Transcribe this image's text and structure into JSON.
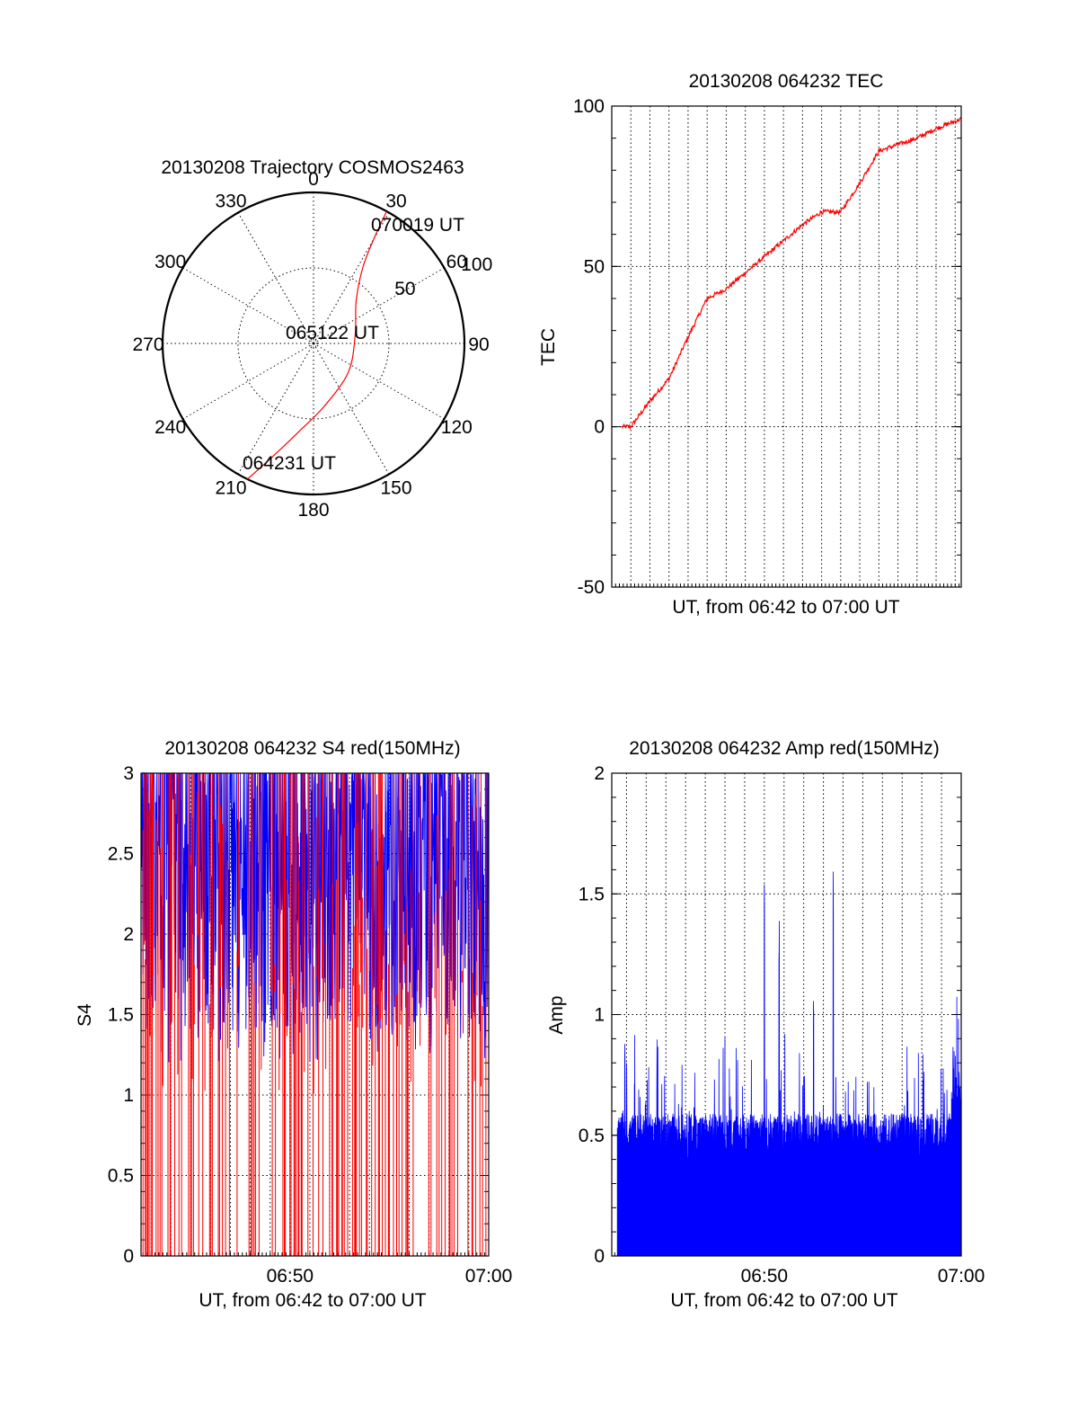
{
  "chart_data": [
    {
      "type": "polar",
      "title": "20130208 Trajectory COSMOS2463",
      "angle_labels": [
        "0",
        "30",
        "60",
        "90",
        "120",
        "150",
        "180",
        "210",
        "240",
        "270",
        "300",
        "330"
      ],
      "angles_deg": [
        0,
        30,
        60,
        90,
        120,
        150,
        180,
        210,
        240,
        270,
        300,
        330
      ],
      "radial_labels": [
        "50",
        "100"
      ],
      "radial_values": [
        50,
        100
      ],
      "rmax": 100,
      "annotations": [
        "070019 UT",
        "065122 UT",
        "064231 UT"
      ],
      "series": [
        {
          "color": "#ff0000",
          "points": [
            {
              "az": 206,
              "r": 100
            },
            {
              "az": 200,
              "r": 80
            },
            {
              "az": 190,
              "r": 60
            },
            {
              "az": 170,
              "r": 42
            },
            {
              "az": 130,
              "r": 30
            },
            {
              "az": 80,
              "r": 28
            },
            {
              "az": 45,
              "r": 40
            },
            {
              "az": 33,
              "r": 60
            },
            {
              "az": 30,
              "r": 80
            },
            {
              "az": 29,
              "r": 100
            }
          ]
        }
      ]
    },
    {
      "type": "line",
      "title": "20130208 064232 TEC",
      "xlabel": "UT, from 06:42 to 07:00 UT",
      "ylabel": "TEC",
      "ylim": [
        -50,
        100
      ],
      "yticks": [
        -50,
        0,
        50,
        100
      ],
      "x_range_minutes": [
        "06:42:32",
        "07:00:19"
      ],
      "grid": "dotted",
      "series": [
        {
          "color": "#ff0000",
          "x": [
            "06:43:00",
            "06:44:00",
            "06:45:00",
            "06:46:00",
            "06:47:00",
            "06:48:00",
            "06:49:00",
            "06:50:00",
            "06:51:00",
            "06:52:00",
            "06:53:00",
            "06:54:00",
            "06:55:00",
            "06:56:00",
            "06:57:00",
            "06:58:00",
            "06:59:00",
            "07:00:19"
          ],
          "y": [
            0,
            8,
            15,
            28,
            40,
            43,
            48,
            53,
            58,
            63,
            67,
            67,
            76,
            86,
            88,
            90,
            93,
            96
          ]
        }
      ]
    },
    {
      "type": "line",
      "title": "20130208 064232 S4 red(150MHz)",
      "xlabel": "UT, from 06:42 to 07:00 UT",
      "ylabel": "S4",
      "ylim": [
        0,
        3
      ],
      "yticks": [
        "0",
        "0.5",
        "1",
        "1.5",
        "2",
        "2.5",
        "3"
      ],
      "xticks": [
        "06:50",
        "07:00"
      ],
      "grid": "dotted",
      "series": [
        {
          "color": "#0000ff",
          "style": "dense noisy trace, mostly 1.5 to 3"
        },
        {
          "color": "#ff0000",
          "style": "dense vertical spikes between 0 and 3"
        }
      ]
    },
    {
      "type": "area",
      "title": "20130208 064232 Amp red(150MHz)",
      "xlabel": "UT, from 06:42 to 07:00 UT",
      "ylabel": "Amp",
      "ylim": [
        0,
        2
      ],
      "yticks": [
        "0",
        "0.5",
        "1",
        "1.5",
        "2"
      ],
      "xticks": [
        "06:50",
        "07:00"
      ],
      "grid": "dotted",
      "series": [
        {
          "color": "#0000ff",
          "baseline": 0.4,
          "peaks": [
            {
              "x": "06:50:00",
              "y": 1.73
            },
            {
              "x": "06:50:45",
              "y": 1.43
            },
            {
              "x": "06:52:30",
              "y": 1.25
            },
            {
              "x": "06:53:30",
              "y": 1.66
            },
            {
              "x": "06:42:55",
              "y": 0.88
            }
          ]
        }
      ]
    }
  ]
}
